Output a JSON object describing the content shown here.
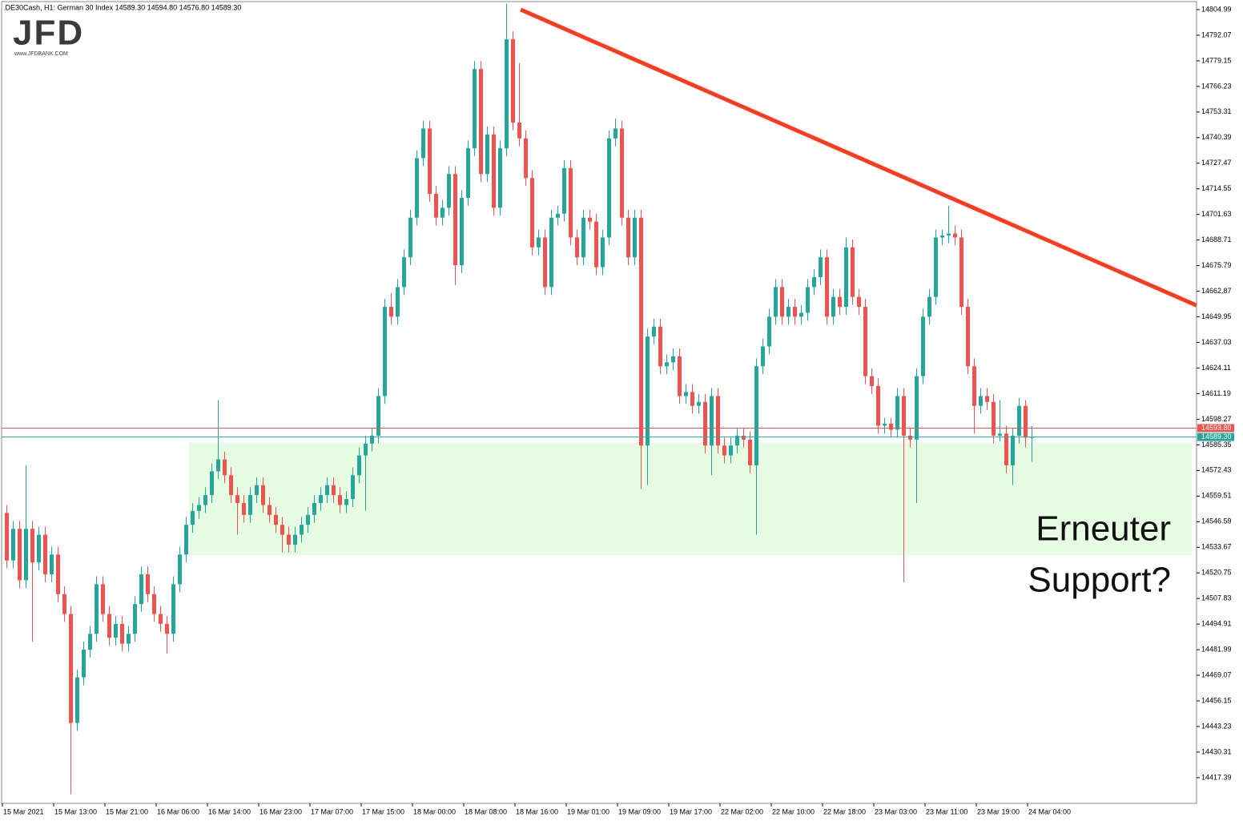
{
  "chart_data": {
    "type": "candlestick",
    "title": ".DE30Cash, H1:  German 30 Index  14589.30 14594.80 14576.80 14589.30",
    "logo": "JFD",
    "logo_url": "www.JFDBANK.COM",
    "annotation": [
      "Erneuter",
      "Support?"
    ],
    "up_color": "#26a69a",
    "down_color": "#ef5350",
    "ylim": [
      14404.42,
      14809.03
    ],
    "xlim": [
      -0.75,
      185.75
    ],
    "yticks": [
      14804.99,
      14792.07,
      14779.15,
      14766.23,
      14753.31,
      14740.39,
      14727.47,
      14714.55,
      14701.63,
      14688.71,
      14675.79,
      14662.87,
      14649.95,
      14637.03,
      14624.11,
      14611.19,
      14598.27,
      14585.35,
      14572.43,
      14559.51,
      14546.59,
      14533.67,
      14520.75,
      14507.83,
      14494.91,
      14481.99,
      14469.07,
      14456.15,
      14443.23,
      14430.31,
      14417.39
    ],
    "xticks": [
      {
        "value": 0,
        "label": "15 Mar 2021"
      },
      {
        "value": 8,
        "label": "15 Mar 13:00"
      },
      {
        "value": 16,
        "label": "15 Mar 21:00"
      },
      {
        "value": 24,
        "label": "16 Mar 06:00"
      },
      {
        "value": 32,
        "label": "16 Mar 14:00"
      },
      {
        "value": 40,
        "label": "16 Mar 23:00"
      },
      {
        "value": 48,
        "label": "17 Mar 07:00"
      },
      {
        "value": 56,
        "label": "17 Mar 15:00"
      },
      {
        "value": 64,
        "label": "18 Mar 00:00"
      },
      {
        "value": 72,
        "label": "18 Mar 08:00"
      },
      {
        "value": 80,
        "label": "18 Mar 16:00"
      },
      {
        "value": 88,
        "label": "19 Mar 01:00"
      },
      {
        "value": 96,
        "label": "19 Mar 09:00"
      },
      {
        "value": 104,
        "label": "19 Mar 17:00"
      },
      {
        "value": 112,
        "label": "22 Mar 02:00"
      },
      {
        "value": 120,
        "label": "22 Mar 10:00"
      },
      {
        "value": 128,
        "label": "22 Mar 18:00"
      },
      {
        "value": 136,
        "label": "23 Mar 03:00"
      },
      {
        "value": 144,
        "label": "23 Mar 11:00"
      },
      {
        "value": 152,
        "label": "23 Mar 19:00"
      },
      {
        "value": 160,
        "label": "24 Mar 04:00"
      }
    ],
    "price_lines": [
      {
        "value": 14593.8,
        "label": "14593.80",
        "color": "#ef5350"
      },
      {
        "value": 14589.3,
        "label": "14589.30",
        "color": "#26a69a"
      }
    ],
    "trendline": {
      "x": [
        80.25,
        185.75
      ],
      "y": [
        14805.0,
        14655.7
      ],
      "color": "#ff3b1f"
    },
    "support_zone": {
      "x": [
        28.5,
        185
      ],
      "y": [
        14529.6,
        14586.5
      ],
      "color": "#e6fde3"
    },
    "candles": [
      [
        14551,
        14555,
        14523,
        14527
      ],
      [
        14527,
        14547,
        14523,
        14543
      ],
      [
        14543,
        14547,
        14513,
        14517
      ],
      [
        14517,
        14575,
        14513,
        14543
      ],
      [
        14543,
        14547,
        14486,
        14526
      ],
      [
        14526,
        14544,
        14522,
        14540
      ],
      [
        14540,
        14544,
        14516,
        14520
      ],
      [
        14520,
        14534,
        14516,
        14530
      ],
      [
        14530,
        14534,
        14506,
        14510
      ],
      [
        14510,
        14514,
        14496,
        14500
      ],
      [
        14500,
        14504,
        14409,
        14445
      ],
      [
        14445,
        14472,
        14441,
        14468
      ],
      [
        14468,
        14486,
        14464,
        14482
      ],
      [
        14482,
        14494,
        14478,
        14490
      ],
      [
        14490,
        14519,
        14486,
        14515
      ],
      [
        14515,
        14519,
        14496,
        14500
      ],
      [
        14500,
        14504,
        14484,
        14488
      ],
      [
        14488,
        14499,
        14484,
        14495
      ],
      [
        14495,
        14499,
        14481,
        14485
      ],
      [
        14485,
        14494,
        14481,
        14490
      ],
      [
        14490,
        14509,
        14486,
        14505
      ],
      [
        14505,
        14524,
        14501,
        14520
      ],
      [
        14520,
        14524,
        14506,
        14510
      ],
      [
        14510,
        14514,
        14496,
        14500
      ],
      [
        14500,
        14504,
        14491,
        14495
      ],
      [
        14495,
        14499,
        14480,
        14490
      ],
      [
        14490,
        14519,
        14486,
        14515
      ],
      [
        14515,
        14534,
        14511,
        14530
      ],
      [
        14530,
        14549,
        14526,
        14545
      ],
      [
        14545,
        14556,
        14541,
        14552
      ],
      [
        14552,
        14559,
        14548,
        14555
      ],
      [
        14555,
        14564,
        14551,
        14560
      ],
      [
        14560,
        14576,
        14556,
        14572
      ],
      [
        14572,
        14608,
        14568,
        14578
      ],
      [
        14578,
        14582,
        14566,
        14570
      ],
      [
        14570,
        14574,
        14556,
        14560
      ],
      [
        14560,
        14564,
        14540,
        14556
      ],
      [
        14556,
        14560,
        14546,
        14550
      ],
      [
        14550,
        14564,
        14546,
        14560
      ],
      [
        14560,
        14569,
        14556,
        14565
      ],
      [
        14565,
        14569,
        14551,
        14555
      ],
      [
        14555,
        14559,
        14546,
        14550
      ],
      [
        14550,
        14554,
        14541,
        14545
      ],
      [
        14545,
        14549,
        14531,
        14540
      ],
      [
        14540,
        14544,
        14531,
        14535
      ],
      [
        14535,
        14544,
        14531,
        14540
      ],
      [
        14540,
        14549,
        14536,
        14545
      ],
      [
        14545,
        14554,
        14541,
        14550
      ],
      [
        14550,
        14560,
        14546,
        14556
      ],
      [
        14556,
        14564,
        14552,
        14560
      ],
      [
        14560,
        14569,
        14556,
        14565
      ],
      [
        14565,
        14569,
        14556,
        14560
      ],
      [
        14560,
        14564,
        14551,
        14555
      ],
      [
        14555,
        14562,
        14551,
        14558
      ],
      [
        14558,
        14574,
        14554,
        14570
      ],
      [
        14570,
        14584,
        14566,
        14580
      ],
      [
        14580,
        14590,
        14552,
        14586
      ],
      [
        14586,
        14594,
        14582,
        14590
      ],
      [
        14590,
        14614,
        14586,
        14610
      ],
      [
        14610,
        14659,
        14606,
        14655
      ],
      [
        14655,
        14662,
        14646,
        14650
      ],
      [
        14650,
        14669,
        14646,
        14665
      ],
      [
        14665,
        14684,
        14661,
        14680
      ],
      [
        14680,
        14704,
        14676,
        14700
      ],
      [
        14700,
        14734,
        14696,
        14730
      ],
      [
        14730,
        14749,
        14726,
        14745
      ],
      [
        14745,
        14749,
        14708,
        14712
      ],
      [
        14712,
        14716,
        14696,
        14700
      ],
      [
        14700,
        14709,
        14696,
        14705
      ],
      [
        14705,
        14726,
        14701,
        14722
      ],
      [
        14722,
        14726,
        14666,
        14676
      ],
      [
        14676,
        14714,
        14672,
        14710
      ],
      [
        14710,
        14739,
        14706,
        14735
      ],
      [
        14735,
        14779,
        14731,
        14775
      ],
      [
        14775,
        14779,
        14718,
        14722
      ],
      [
        14722,
        14746,
        14718,
        14742
      ],
      [
        14742,
        14746,
        14701,
        14705
      ],
      [
        14705,
        14739,
        14701,
        14735
      ],
      [
        14735,
        14808,
        14731,
        14790
      ],
      [
        14790,
        14794,
        14744,
        14748
      ],
      [
        14748,
        14778,
        14736,
        14740
      ],
      [
        14740,
        14744,
        14716,
        14720
      ],
      [
        14720,
        14724,
        14681,
        14685
      ],
      [
        14685,
        14694,
        14681,
        14690
      ],
      [
        14690,
        14694,
        14661,
        14665
      ],
      [
        14665,
        14704,
        14661,
        14700
      ],
      [
        14700,
        14706,
        14696,
        14702
      ],
      [
        14702,
        14729,
        14698,
        14725
      ],
      [
        14725,
        14729,
        14686,
        14690
      ],
      [
        14690,
        14694,
        14676,
        14680
      ],
      [
        14680,
        14704,
        14676,
        14700
      ],
      [
        14700,
        14704,
        14694,
        14698
      ],
      [
        14698,
        14702,
        14671,
        14675
      ],
      [
        14675,
        14694,
        14671,
        14690
      ],
      [
        14690,
        14744,
        14686,
        14740
      ],
      [
        14740,
        14750,
        14736,
        14745
      ],
      [
        14745,
        14749,
        14696,
        14700
      ],
      [
        14700,
        14704,
        14676,
        14680
      ],
      [
        14680,
        14704,
        14676,
        14700
      ],
      [
        14700,
        14704,
        14563,
        14585
      ],
      [
        14585,
        14644,
        14565,
        14640
      ],
      [
        14640,
        14649,
        14636,
        14645
      ],
      [
        14645,
        14649,
        14621,
        14625
      ],
      [
        14625,
        14631,
        14621,
        14627
      ],
      [
        14627,
        14634,
        14623,
        14630
      ],
      [
        14630,
        14634,
        14606,
        14610
      ],
      [
        14610,
        14616,
        14606,
        14612
      ],
      [
        14612,
        14616,
        14601,
        14605
      ],
      [
        14605,
        14611,
        14601,
        14607
      ],
      [
        14607,
        14611,
        14581,
        14585
      ],
      [
        14585,
        14614,
        14570,
        14610
      ],
      [
        14610,
        14614,
        14581,
        14585
      ],
      [
        14585,
        14589,
        14576,
        14580
      ],
      [
        14580,
        14589,
        14576,
        14585
      ],
      [
        14585,
        14594,
        14581,
        14590
      ],
      [
        14590,
        14594,
        14584,
        14588
      ],
      [
        14588,
        14592,
        14571,
        14575
      ],
      [
        14575,
        14629,
        14540,
        14625
      ],
      [
        14625,
        14639,
        14621,
        14635
      ],
      [
        14635,
        14654,
        14631,
        14650
      ],
      [
        14650,
        14669,
        14646,
        14665
      ],
      [
        14665,
        14669,
        14646,
        14650
      ],
      [
        14650,
        14659,
        14646,
        14655
      ],
      [
        14655,
        14659,
        14646,
        14650
      ],
      [
        14650,
        14656,
        14646,
        14652
      ],
      [
        14652,
        14669,
        14648,
        14665
      ],
      [
        14665,
        14674,
        14661,
        14670
      ],
      [
        14670,
        14684,
        14666,
        14680
      ],
      [
        14680,
        14684,
        14646,
        14650
      ],
      [
        14650,
        14664,
        14646,
        14660
      ],
      [
        14660,
        14664,
        14651,
        14655
      ],
      [
        14655,
        14690,
        14651,
        14685
      ],
      [
        14685,
        14689,
        14656,
        14660
      ],
      [
        14660,
        14664,
        14651,
        14655
      ],
      [
        14655,
        14659,
        14616,
        14620
      ],
      [
        14620,
        14624,
        14611,
        14615
      ],
      [
        14615,
        14619,
        14591,
        14595
      ],
      [
        14595,
        14599,
        14591,
        14596
      ],
      [
        14596,
        14599,
        14589,
        14593
      ],
      [
        14593,
        14614,
        14589,
        14610
      ],
      [
        14610,
        14614,
        14516,
        14590
      ],
      [
        14590,
        14594,
        14584,
        14588
      ],
      [
        14588,
        14624,
        14556,
        14620
      ],
      [
        14620,
        14654,
        14616,
        14650
      ],
      [
        14650,
        14664,
        14646,
        14660
      ],
      [
        14660,
        14694,
        14656,
        14690
      ],
      [
        14690,
        14694,
        14686,
        14691
      ],
      [
        14691,
        14706,
        14687,
        14692
      ],
      [
        14692,
        14696,
        14686,
        14690
      ],
      [
        14690,
        14694,
        14651,
        14655
      ],
      [
        14655,
        14659,
        14621,
        14625
      ],
      [
        14625,
        14629,
        14591,
        14605
      ],
      [
        14605,
        14614,
        14601,
        14610
      ],
      [
        14610,
        14614,
        14603,
        14607
      ],
      [
        14607,
        14611,
        14586,
        14590
      ],
      [
        14590,
        14608,
        14587,
        14591
      ],
      [
        14591,
        14595,
        14571,
        14575
      ],
      [
        14575,
        14594,
        14565,
        14590
      ],
      [
        14590,
        14609,
        14586,
        14605
      ],
      [
        14605,
        14608,
        14584,
        14589
      ],
      [
        14589.3,
        14594.8,
        14576.8,
        14589.3
      ]
    ]
  }
}
